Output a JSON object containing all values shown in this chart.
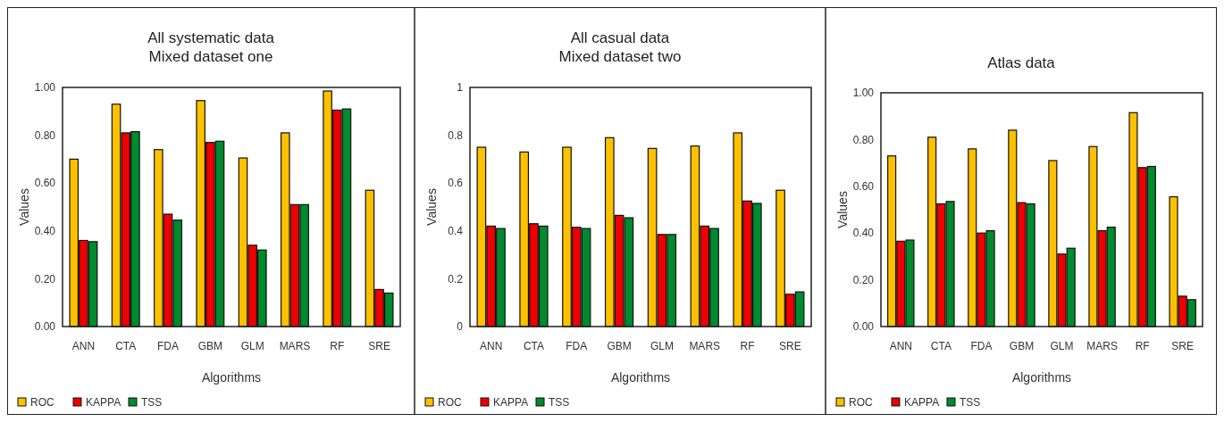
{
  "chart_data": [
    {
      "type": "bar",
      "title": "All systematic data",
      "subtitle": "Mixed dataset one",
      "xlabel": "Algorithms",
      "ylabel": "Values",
      "categories": [
        "ANN",
        "CTA",
        "FDA",
        "GBM",
        "GLM",
        "MARS",
        "RF",
        "SRE"
      ],
      "series": [
        {
          "name": "ROC",
          "color": "#ffc000",
          "values": [
            0.7,
            0.93,
            0.74,
            0.945,
            0.705,
            0.81,
            0.985,
            0.57
          ]
        },
        {
          "name": "KAPPA",
          "color": "#ee0000",
          "values": [
            0.36,
            0.81,
            0.47,
            0.77,
            0.34,
            0.51,
            0.905,
            0.155
          ]
        },
        {
          "name": "TSS",
          "color": "#008a2e",
          "values": [
            0.355,
            0.815,
            0.445,
            0.775,
            0.32,
            0.51,
            0.91,
            0.14
          ]
        }
      ],
      "ylim": [
        0,
        1
      ],
      "yticks": [
        {
          "value": 0,
          "label": "0.00"
        },
        {
          "value": 0.2,
          "label": "0.20"
        },
        {
          "value": 0.4,
          "label": "0.40"
        },
        {
          "value": 0.6,
          "label": "0.60"
        },
        {
          "value": 0.8,
          "label": "0.80"
        },
        {
          "value": 1,
          "label": "1.00"
        }
      ],
      "grid": false,
      "legend": "bottom left"
    },
    {
      "type": "bar",
      "title": "All casual data",
      "subtitle": "Mixed dataset two",
      "xlabel": "Algorithms",
      "ylabel": "Values",
      "categories": [
        "ANN",
        "CTA",
        "FDA",
        "GBM",
        "GLM",
        "MARS",
        "RF",
        "SRE"
      ],
      "series": [
        {
          "name": "ROC",
          "color": "#ffc000",
          "values": [
            0.75,
            0.73,
            0.75,
            0.79,
            0.745,
            0.755,
            0.81,
            0.57
          ]
        },
        {
          "name": "KAPPA",
          "color": "#ee0000",
          "values": [
            0.42,
            0.43,
            0.415,
            0.465,
            0.385,
            0.42,
            0.525,
            0.135
          ]
        },
        {
          "name": "TSS",
          "color": "#008a2e",
          "values": [
            0.41,
            0.42,
            0.41,
            0.455,
            0.385,
            0.41,
            0.515,
            0.145
          ]
        }
      ],
      "ylim": [
        0,
        1
      ],
      "yticks": [
        0,
        0.2,
        0.4,
        0.6,
        0.8,
        1
      ],
      "grid": false,
      "legend": "bottom left"
    },
    {
      "type": "bar",
      "title": "Atlas data",
      "xlabel": "Algorithms",
      "ylabel": "Values",
      "categories": [
        "ANN",
        "CTA",
        "FDA",
        "GBM",
        "GLM",
        "MARS",
        "RF",
        "SRE"
      ],
      "series": [
        {
          "name": "ROC",
          "color": "#ffc000",
          "values": [
            0.73,
            0.81,
            0.76,
            0.84,
            0.71,
            0.77,
            0.915,
            0.555
          ]
        },
        {
          "name": "KAPPA",
          "color": "#ee0000",
          "values": [
            0.365,
            0.525,
            0.4,
            0.53,
            0.31,
            0.41,
            0.68,
            0.13
          ]
        },
        {
          "name": "TSS",
          "color": "#008a2e",
          "values": [
            0.37,
            0.535,
            0.41,
            0.525,
            0.335,
            0.425,
            0.685,
            0.115
          ]
        }
      ],
      "ylim": [
        0,
        1
      ],
      "yticks": [
        {
          "value": 0,
          "label": "0.00"
        },
        {
          "value": 0.2,
          "label": "0.20"
        },
        {
          "value": 0.4,
          "label": "0.40"
        },
        {
          "value": 0.6,
          "label": "0.60"
        },
        {
          "value": 0.8,
          "label": "0.80"
        },
        {
          "value": 1,
          "label": "1.00"
        }
      ],
      "grid": false,
      "legend": "bottom left"
    }
  ]
}
